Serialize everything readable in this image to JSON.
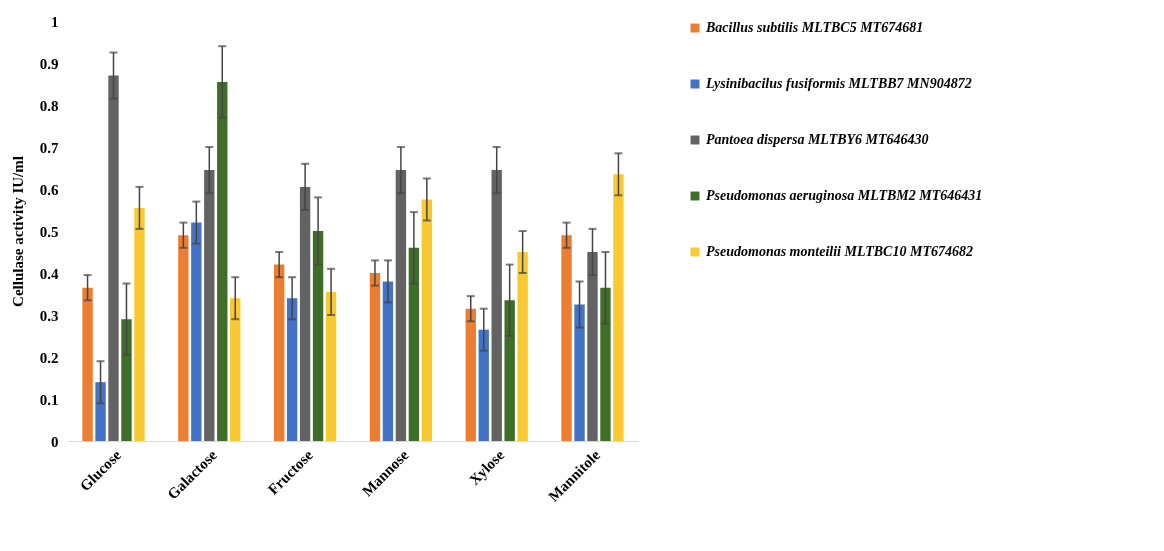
{
  "chart_data": {
    "type": "bar",
    "ylabel": "Cellulase activity IU/ml",
    "categories": [
      "Glucose",
      "Galactose",
      "Fructose",
      "Mannose",
      "Xylose",
      "Mannitole"
    ],
    "series": [
      {
        "name": "Bacillus subtilis MLTBC5 MT674681",
        "color": "#ed7d31",
        "values": [
          0.365,
          0.49,
          0.42,
          0.4,
          0.315,
          0.49
        ],
        "errors": [
          0.03,
          0.03,
          0.03,
          0.03,
          0.03,
          0.03
        ]
      },
      {
        "name": "Lysinibacilus fusiformis MLTBB7 MN904872",
        "color": "#4472c4",
        "values": [
          0.14,
          0.52,
          0.34,
          0.38,
          0.265,
          0.325
        ],
        "errors": [
          0.05,
          0.05,
          0.05,
          0.05,
          0.05,
          0.055
        ]
      },
      {
        "name": "Pantoea dispersa MLTBY6 MT646430",
        "color": "#636363",
        "values": [
          0.87,
          0.645,
          0.605,
          0.645,
          0.645,
          0.45
        ],
        "errors": [
          0.055,
          0.055,
          0.055,
          0.055,
          0.055,
          0.055
        ]
      },
      {
        "name": "Pseudomonas aeruginosa MLTBM2 MT646431",
        "color": "#3f6e28",
        "values": [
          0.29,
          0.855,
          0.5,
          0.46,
          0.335,
          0.365
        ],
        "errors": [
          0.085,
          0.085,
          0.08,
          0.085,
          0.085,
          0.085
        ]
      },
      {
        "name": "Pseudomonas monteilii MLTBC10 MT674682",
        "color": "#f9c932",
        "values": [
          0.555,
          0.34,
          0.355,
          0.575,
          0.45,
          0.635
        ],
        "errors": [
          0.05,
          0.05,
          0.055,
          0.05,
          0.05,
          0.05
        ]
      }
    ],
    "ylim": [
      0,
      1
    ],
    "yticks": [
      0,
      0.1,
      0.2,
      0.3,
      0.4,
      0.5,
      0.6,
      0.7,
      0.8,
      0.9,
      1
    ],
    "grid": false,
    "legend": "right"
  }
}
